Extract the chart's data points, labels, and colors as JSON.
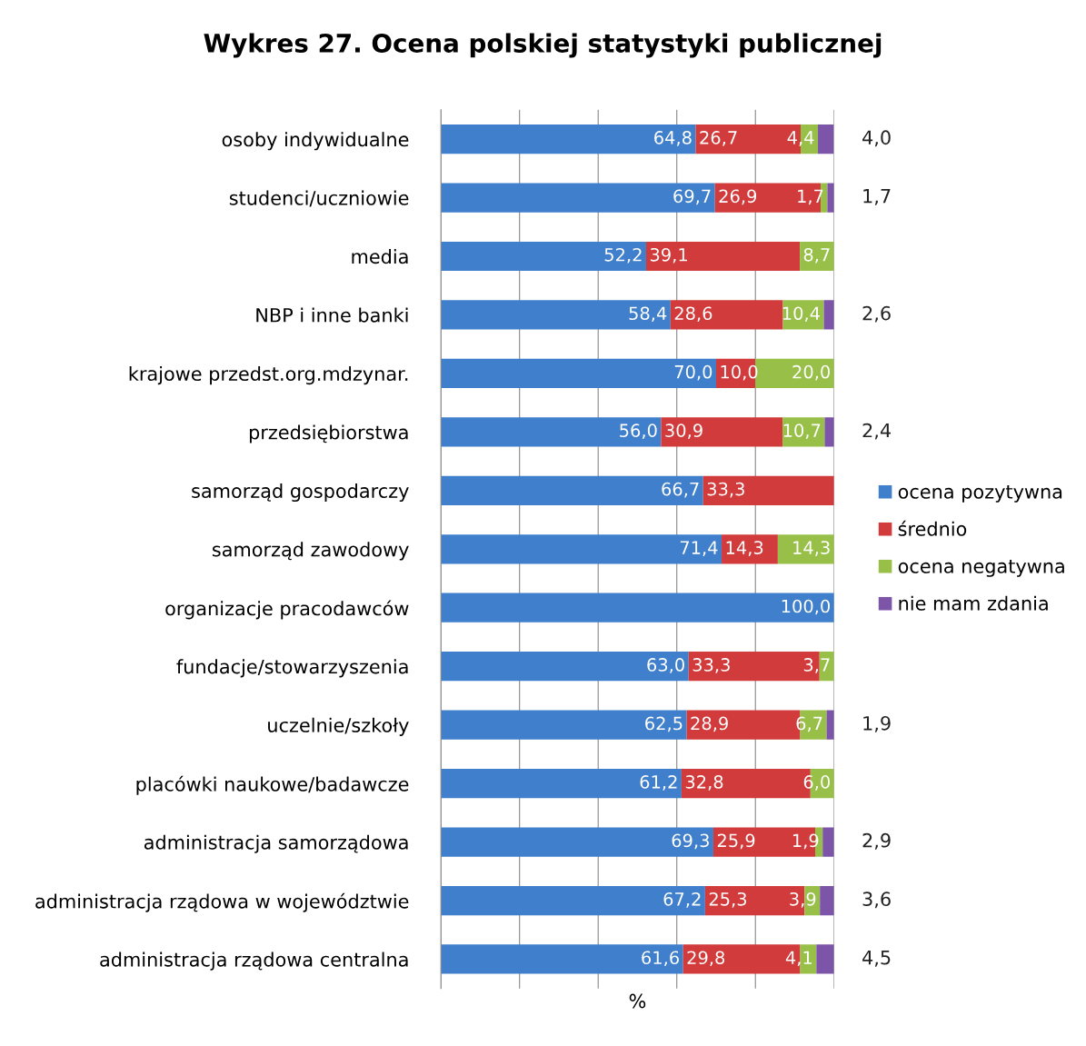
{
  "chart_data": {
    "type": "bar",
    "orientation": "horizontal",
    "stacked": true,
    "title": "Wykres 27. Ocena polskiej statystyki publicznej",
    "xlabel": "%",
    "categories": [
      "osoby indywidualne",
      "studenci/uczniowie",
      "media",
      "NBP i inne banki",
      "krajowe przedst.org.mdzynar.",
      "przedsiębiorstwa",
      "samorząd gospodarczy",
      "samorząd zawodowy",
      "organizacje pracodawców",
      "fundacje/stowarzyszenia",
      "uczelnie/szkoły",
      "placówki naukowe/badawcze",
      "administracja samorządowa",
      "administracja rządowa w województwie",
      "administracja rządowa centralna"
    ],
    "series": [
      {
        "name": "ocena pozytywna",
        "color": "#3f7fcb",
        "values": [
          64.8,
          69.7,
          52.2,
          58.4,
          70.0,
          56.0,
          66.7,
          71.4,
          100.0,
          63.0,
          62.5,
          61.2,
          69.3,
          67.2,
          61.6
        ],
        "value_labels": [
          "64,8",
          "69,7",
          "52,2",
          "58,4",
          "70,0",
          "56,0",
          "66,7",
          "71,4",
          "100,0",
          "63,0",
          "62,5",
          "61,2",
          "69,3",
          "67,2",
          "61,6"
        ]
      },
      {
        "name": "średnio",
        "color": "#d23b3b",
        "values": [
          26.7,
          26.9,
          39.1,
          28.6,
          10.0,
          30.9,
          33.3,
          14.3,
          null,
          33.3,
          28.9,
          32.8,
          25.9,
          25.3,
          29.8
        ],
        "value_labels": [
          "26,7",
          "26,9",
          "39,1",
          "28,6",
          "10,0",
          "30,9",
          "33,3",
          "14,3",
          null,
          "33,3",
          "28,9",
          "32,8",
          "25,9",
          "25,3",
          "29,8"
        ]
      },
      {
        "name": "ocena negatywna",
        "color": "#98c048",
        "values": [
          4.4,
          1.7,
          8.7,
          10.4,
          20.0,
          10.7,
          null,
          14.3,
          null,
          3.7,
          6.7,
          6.0,
          1.9,
          3.9,
          4.1
        ],
        "value_labels": [
          "4,4",
          "1,7",
          "8,7",
          "10,4",
          "20,0",
          "10,7",
          null,
          "14,3",
          null,
          "3,7",
          "6,7",
          "6,0",
          "1,9",
          "3,9",
          "4,1"
        ]
      },
      {
        "name": "nie mam zdania",
        "color": "#7d55a8",
        "values": [
          4.0,
          1.7,
          null,
          2.6,
          null,
          2.4,
          null,
          null,
          null,
          null,
          1.9,
          null,
          2.9,
          3.6,
          4.5
        ],
        "value_labels": [
          "4,0",
          "1,7",
          null,
          "2,6",
          null,
          "2,4",
          null,
          null,
          null,
          null,
          "1,9",
          null,
          "2,9",
          "3,6",
          "4,5"
        ]
      }
    ],
    "xlim": [
      0,
      100
    ],
    "xticks": [
      {
        "value": 0,
        "label": null
      },
      {
        "value": 20,
        "label": null
      },
      {
        "value": 40,
        "label": null
      },
      {
        "value": 60,
        "label": null
      },
      {
        "value": 80,
        "label": null
      },
      {
        "value": 100,
        "label": null
      }
    ],
    "tick_labels": "y",
    "grid": "x",
    "legend": "right"
  }
}
